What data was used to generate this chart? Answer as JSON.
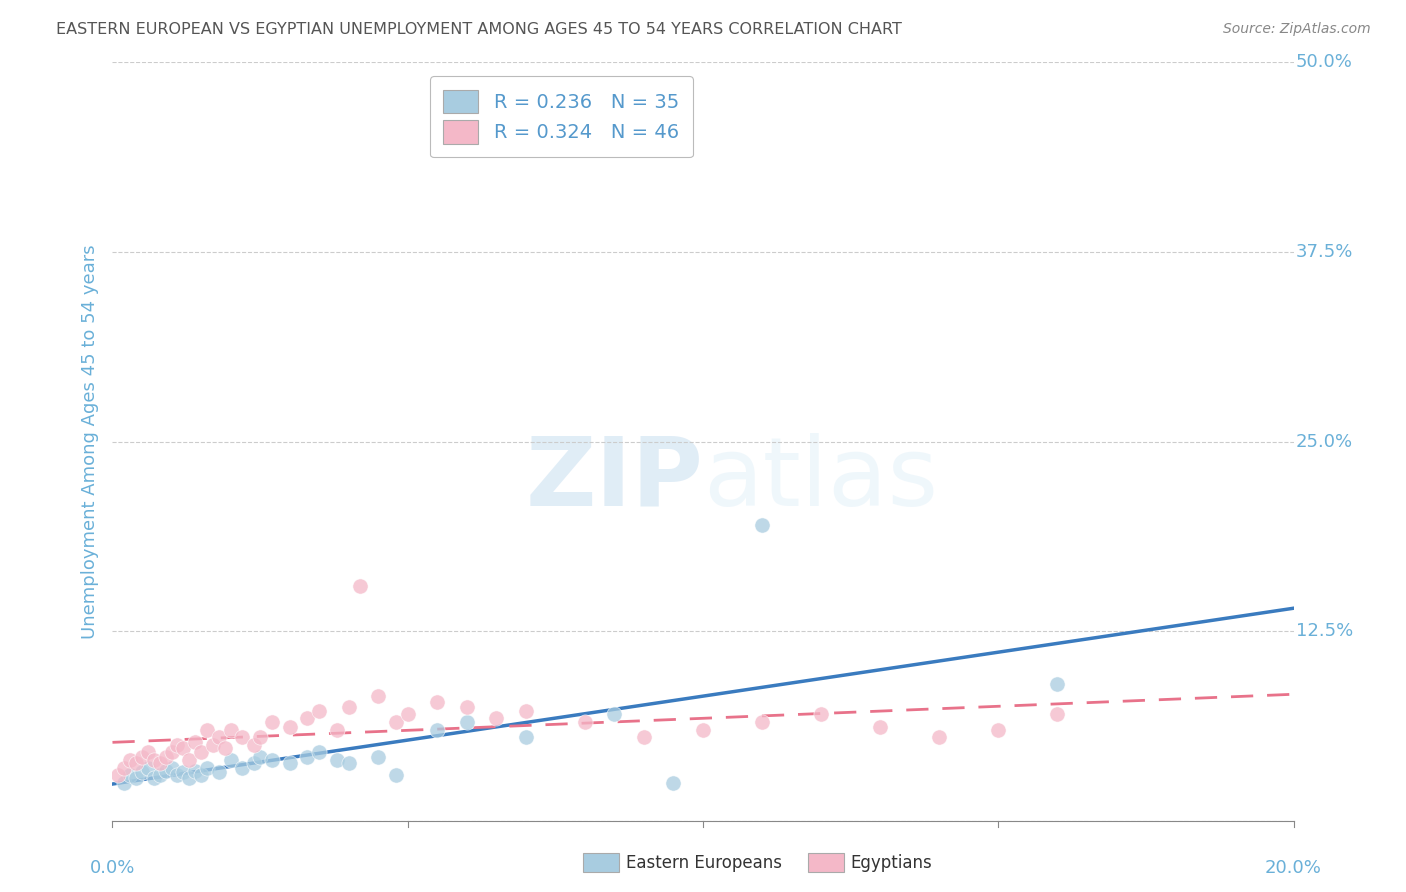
{
  "title": "EASTERN EUROPEAN VS EGYPTIAN UNEMPLOYMENT AMONG AGES 45 TO 54 YEARS CORRELATION CHART",
  "source": "Source: ZipAtlas.com",
  "ylabel": "Unemployment Among Ages 45 to 54 years",
  "xlim": [
    0.0,
    0.2
  ],
  "ylim": [
    0.0,
    0.5
  ],
  "yticks": [
    0.0,
    0.125,
    0.25,
    0.375,
    0.5
  ],
  "ytick_labels": [
    "0.0%",
    "12.5%",
    "25.0%",
    "37.5%",
    "50.0%"
  ],
  "xtick_left_label": "0.0%",
  "xtick_right_label": "20.0%",
  "watermark_zip": "ZIP",
  "watermark_atlas": "atlas",
  "legend_R1": "R = 0.236",
  "legend_N1": "N = 35",
  "legend_R2": "R = 0.324",
  "legend_N2": "N = 46",
  "legend_label1": "Eastern Europeans",
  "legend_label2": "Egyptians",
  "blue_scatter_color": "#a8cce0",
  "pink_scatter_color": "#f4b8c8",
  "line_blue_color": "#3a7bbf",
  "line_pink_color": "#e8728a",
  "tick_color": "#6ab0d8",
  "ylabel_color": "#6ab0d8",
  "title_color": "#555555",
  "source_color": "#888888",
  "grid_color": "#cccccc",
  "legend_text_color": "#5599cc",
  "blue_points_x": [
    0.002,
    0.003,
    0.004,
    0.005,
    0.006,
    0.007,
    0.008,
    0.009,
    0.01,
    0.011,
    0.012,
    0.013,
    0.014,
    0.015,
    0.016,
    0.018,
    0.02,
    0.022,
    0.024,
    0.025,
    0.027,
    0.03,
    0.033,
    0.035,
    0.038,
    0.04,
    0.045,
    0.048,
    0.055,
    0.06,
    0.07,
    0.085,
    0.095,
    0.11,
    0.16
  ],
  "blue_points_y": [
    0.025,
    0.03,
    0.028,
    0.032,
    0.035,
    0.028,
    0.03,
    0.033,
    0.035,
    0.03,
    0.032,
    0.028,
    0.033,
    0.03,
    0.035,
    0.032,
    0.04,
    0.035,
    0.038,
    0.042,
    0.04,
    0.038,
    0.042,
    0.045,
    0.04,
    0.038,
    0.042,
    0.03,
    0.06,
    0.065,
    0.055,
    0.07,
    0.025,
    0.195,
    0.09
  ],
  "pink_points_x": [
    0.001,
    0.002,
    0.003,
    0.004,
    0.005,
    0.006,
    0.007,
    0.008,
    0.009,
    0.01,
    0.011,
    0.012,
    0.013,
    0.014,
    0.015,
    0.016,
    0.017,
    0.018,
    0.019,
    0.02,
    0.022,
    0.024,
    0.025,
    0.027,
    0.03,
    0.033,
    0.035,
    0.038,
    0.04,
    0.042,
    0.045,
    0.048,
    0.05,
    0.055,
    0.06,
    0.065,
    0.07,
    0.08,
    0.09,
    0.1,
    0.11,
    0.12,
    0.13,
    0.14,
    0.15,
    0.16
  ],
  "pink_points_y": [
    0.03,
    0.035,
    0.04,
    0.038,
    0.042,
    0.045,
    0.04,
    0.038,
    0.042,
    0.045,
    0.05,
    0.048,
    0.04,
    0.052,
    0.045,
    0.06,
    0.05,
    0.055,
    0.048,
    0.06,
    0.055,
    0.05,
    0.055,
    0.065,
    0.062,
    0.068,
    0.072,
    0.06,
    0.075,
    0.155,
    0.082,
    0.065,
    0.07,
    0.078,
    0.075,
    0.068,
    0.072,
    0.065,
    0.055,
    0.06,
    0.065,
    0.07,
    0.062,
    0.055,
    0.06,
    0.07
  ]
}
